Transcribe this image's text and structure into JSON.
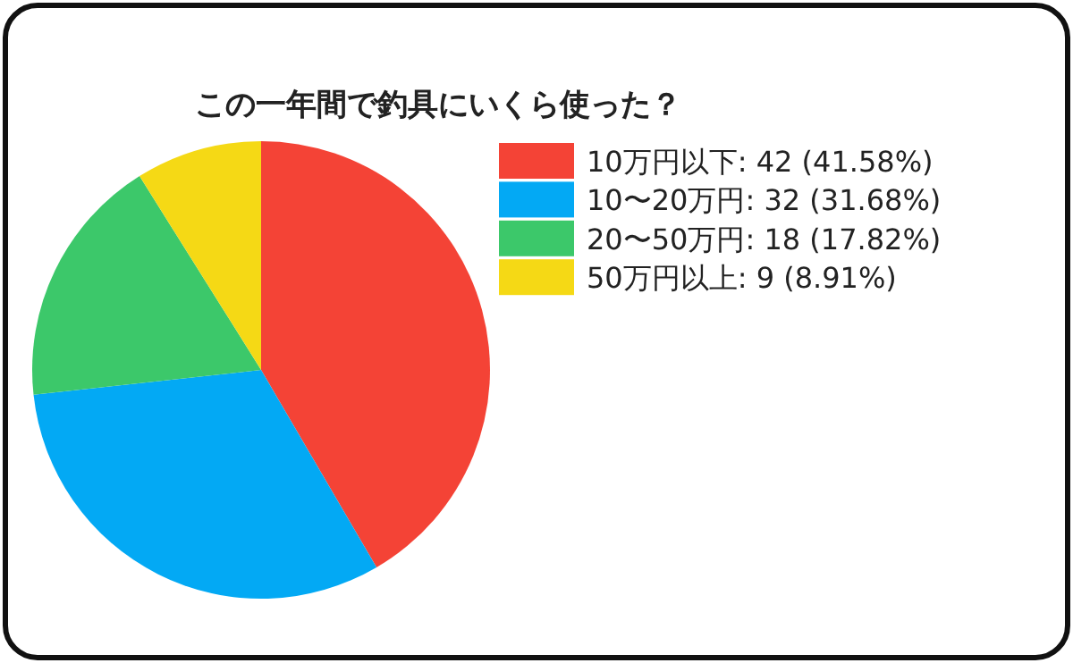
{
  "chart_data": {
    "type": "pie",
    "title": "この一年間で釣具にいくら使った？",
    "categories": [
      "10万円以下",
      "10〜20万円",
      "20〜50万円",
      "50万円以上"
    ],
    "values": [
      42,
      32,
      18,
      9
    ],
    "value_labels": [
      "42 (41.58%)",
      "32 (31.68%)",
      "18 (17.82%)",
      "9 (8.91%)"
    ],
    "colors": [
      "#f44336",
      "#03a9f4",
      "#3cc86a",
      "#f5d915"
    ],
    "legend": "top right"
  }
}
